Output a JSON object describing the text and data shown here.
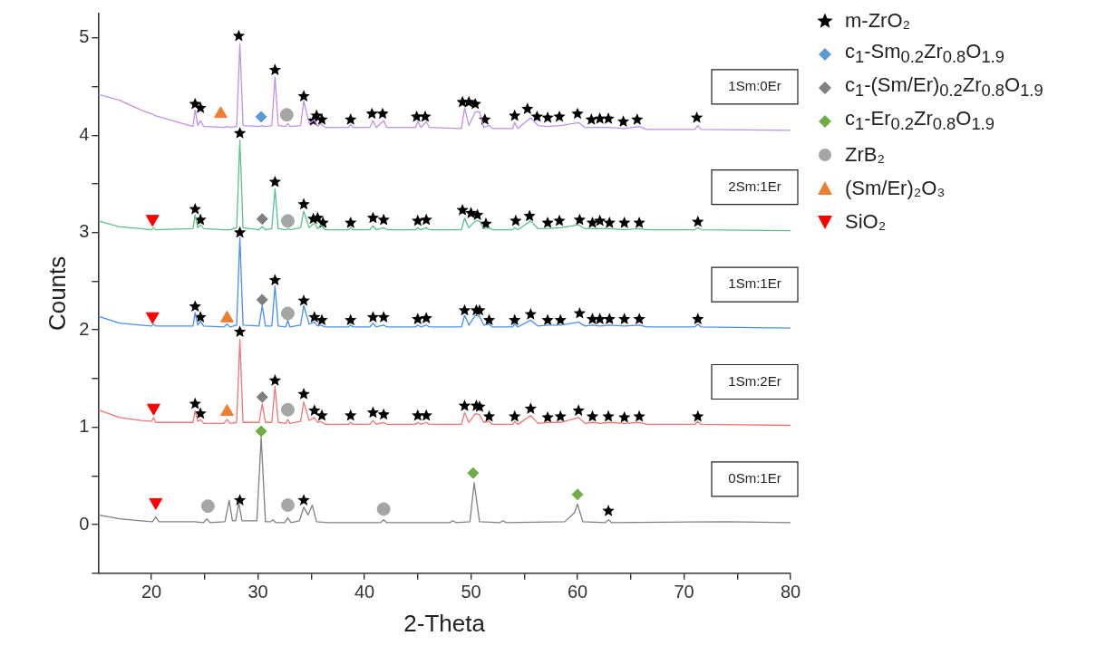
{
  "chart_data": {
    "type": "line",
    "xlabel": "2-Theta",
    "ylabel": "Counts",
    "xlim": [
      15,
      80
    ],
    "xticks": [
      20,
      {
        "value": 25,
        "label": null
      },
      30,
      {
        "value": 35,
        "label": null
      },
      40,
      {
        "value": 45,
        "label": null
      },
      50,
      {
        "value": 55,
        "label": null
      },
      60,
      {
        "value": 65,
        "label": null
      },
      70,
      {
        "value": 75,
        "label": null
      },
      80
    ],
    "ylim": [
      -0.5,
      5.25
    ],
    "yticks": [
      {
        "value": -0.5,
        "label": null
      },
      0,
      {
        "value": 0.5,
        "label": null
      },
      1,
      {
        "value": 1.5,
        "label": null
      },
      2,
      {
        "value": 2.5,
        "label": null
      },
      3,
      {
        "value": 3.5,
        "label": null
      },
      4,
      {
        "value": 4.5,
        "label": null
      },
      5
    ],
    "legend": "right",
    "series": [
      {
        "name": "0Sm:1Er",
        "color": "#808080",
        "marker": "none",
        "x": [
          15,
          17,
          19,
          20.1,
          20.4,
          20.7,
          24,
          24.9,
          25.2,
          25.5,
          26.9,
          27.3,
          27.6,
          27.9,
          28.2,
          28.5,
          29.9,
          30.3,
          30.7,
          31.2,
          31.4,
          31.7,
          32.5,
          32.8,
          33.1,
          33.9,
          34.3,
          34.7,
          35.1,
          35.5,
          36.5,
          41.5,
          41.8,
          42.1,
          48,
          48.3,
          48.6,
          49.9,
          50.3,
          50.8,
          52.7,
          53,
          53.3,
          58.8,
          59.7,
          60,
          60.5,
          62.6,
          62.9,
          63.2,
          74,
          80
        ],
        "values": [
          0.1,
          0.06,
          0.04,
          0.03,
          0.08,
          0.03,
          0.03,
          0.02,
          0.06,
          0.02,
          0.03,
          0.25,
          0.04,
          0.04,
          0.22,
          0.04,
          0.04,
          0.9,
          0.03,
          0.03,
          0.05,
          0.02,
          0.02,
          0.07,
          0.02,
          0.04,
          0.18,
          0.1,
          0.2,
          0.03,
          0.02,
          0.02,
          0.05,
          0.02,
          0.02,
          0.04,
          0.02,
          0.03,
          0.43,
          0.03,
          0.02,
          0.04,
          0.02,
          0.03,
          0.12,
          0.21,
          0.03,
          0.02,
          0.05,
          0.02,
          0.03,
          0.02
        ]
      },
      {
        "name": "1Sm:2Er",
        "color": "#f07575",
        "marker": "none",
        "x": [
          15,
          17,
          19,
          20,
          20.2,
          20.4,
          23.9,
          24.1,
          24.35,
          24.6,
          24.9,
          26.8,
          27.1,
          27.4,
          28,
          28.3,
          28.6,
          30.1,
          30.4,
          30.7,
          31.3,
          31.6,
          31.9,
          32.6,
          32.8,
          33,
          34,
          34.3,
          34.8,
          35.3,
          35.6,
          35.9,
          36.3,
          38.5,
          38.7,
          38.9,
          40.5,
          40.8,
          41.1,
          41.8,
          42.1,
          44.8,
          45,
          45.3,
          45.8,
          46.1,
          49.1,
          49.4,
          49.8,
          50.4,
          50.8,
          51.2,
          51.7,
          52,
          53.9,
          54.1,
          54.4,
          55.6,
          56.3,
          57.2,
          58.4,
          60.1,
          60.7,
          61.4,
          62.1,
          63,
          64.4,
          65.8,
          66.5,
          71,
          71.3,
          71.6,
          80
        ],
        "values": [
          1.18,
          1.1,
          1.07,
          1.06,
          1.1,
          1.05,
          1.05,
          1.17,
          1.06,
          1.08,
          1.04,
          1.04,
          1.08,
          1.04,
          1.05,
          1.9,
          1.05,
          1.05,
          1.24,
          1.05,
          1.05,
          1.42,
          1.05,
          1.04,
          1.08,
          1.04,
          1.06,
          1.26,
          1.07,
          1.1,
          1.05,
          1.06,
          1.03,
          1.03,
          1.05,
          1.03,
          1.03,
          1.07,
          1.03,
          1.05,
          1.03,
          1.03,
          1.05,
          1.03,
          1.05,
          1.03,
          1.03,
          1.15,
          1.05,
          1.14,
          1.13,
          1.05,
          1.06,
          1.03,
          1.03,
          1.06,
          1.03,
          1.12,
          1.04,
          1.05,
          1.05,
          1.1,
          1.04,
          1.05,
          1.04,
          1.05,
          1.04,
          1.05,
          1.03,
          1.03,
          1.06,
          1.03,
          1.02
        ]
      },
      {
        "name": "1Sm:1Er",
        "color": "#4a8ef0",
        "marker": "none",
        "x": [
          15,
          17,
          19,
          20,
          20.2,
          20.4,
          23.9,
          24.1,
          24.35,
          24.6,
          24.9,
          26.8,
          27.1,
          27.4,
          28,
          28.3,
          28.6,
          30.1,
          30.4,
          30.7,
          31.3,
          31.6,
          31.9,
          32.6,
          32.8,
          33,
          34,
          34.3,
          34.8,
          35.3,
          35.6,
          35.9,
          36.3,
          38.5,
          38.7,
          38.9,
          40.5,
          40.8,
          41.1,
          41.8,
          42.1,
          44.8,
          45,
          45.3,
          45.8,
          46.1,
          49.1,
          49.4,
          49.8,
          50.4,
          50.8,
          51.2,
          51.7,
          52,
          53.9,
          54.1,
          54.4,
          55.6,
          56.3,
          57.2,
          58.4,
          60.1,
          60.7,
          61.4,
          62.1,
          63,
          64.4,
          65.8,
          66.5,
          71,
          71.3,
          71.6,
          80
        ],
        "values": [
          2.14,
          2.07,
          2.05,
          2.04,
          2.06,
          2.04,
          2.04,
          2.18,
          2.05,
          2.09,
          2.04,
          2.03,
          2.06,
          2.03,
          2.05,
          2.95,
          2.05,
          2.04,
          2.25,
          2.04,
          2.04,
          2.45,
          2.04,
          2.03,
          2.1,
          2.03,
          2.05,
          2.25,
          2.06,
          2.08,
          2.04,
          2.05,
          2.03,
          2.03,
          2.05,
          2.03,
          2.03,
          2.07,
          2.03,
          2.05,
          2.03,
          2.03,
          2.05,
          2.03,
          2.05,
          2.03,
          2.03,
          2.15,
          2.05,
          2.15,
          2.14,
          2.05,
          2.06,
          2.03,
          2.03,
          2.06,
          2.03,
          2.1,
          2.04,
          2.05,
          2.05,
          2.08,
          2.04,
          2.05,
          2.04,
          2.05,
          2.04,
          2.05,
          2.03,
          2.03,
          2.06,
          2.03,
          2.02
        ]
      },
      {
        "name": "2Sm:1Er",
        "color": "#5cc08a",
        "marker": "none",
        "x": [
          15,
          17,
          19,
          20,
          20.2,
          20.4,
          23.9,
          24.1,
          24.35,
          24.6,
          24.9,
          26.8,
          27.1,
          27.4,
          28,
          28.3,
          28.6,
          30.1,
          30.4,
          30.7,
          31.3,
          31.6,
          31.9,
          32.6,
          32.8,
          33,
          34,
          34.3,
          34.8,
          35.3,
          35.6,
          35.9,
          36.3,
          38.5,
          38.7,
          38.9,
          40.5,
          40.8,
          41.1,
          41.8,
          42.1,
          44.8,
          45,
          45.3,
          45.8,
          46.1,
          49.1,
          49.4,
          49.8,
          50.4,
          50.8,
          51.2,
          51.7,
          52,
          53.9,
          54.1,
          54.4,
          55.6,
          56.3,
          57.2,
          58.4,
          60.1,
          60.7,
          61.4,
          62.1,
          63,
          64.4,
          65.8,
          66.5,
          71,
          71.3,
          71.6,
          80
        ],
        "values": [
          3.12,
          3.06,
          3.04,
          3.03,
          3.05,
          3.03,
          3.04,
          3.18,
          3.05,
          3.08,
          3.04,
          3.03,
          3.03,
          3.03,
          3.05,
          3.95,
          3.05,
          3.03,
          3.06,
          3.03,
          3.04,
          3.45,
          3.04,
          3.03,
          3.04,
          3.03,
          3.05,
          3.22,
          3.05,
          3.1,
          3.04,
          3.08,
          3.03,
          3.03,
          3.05,
          3.03,
          3.03,
          3.07,
          3.03,
          3.05,
          3.03,
          3.03,
          3.05,
          3.03,
          3.05,
          3.03,
          3.03,
          3.15,
          3.05,
          3.12,
          3.12,
          3.04,
          3.05,
          3.03,
          3.03,
          3.05,
          3.03,
          3.12,
          3.04,
          3.04,
          3.05,
          3.08,
          3.04,
          3.04,
          3.04,
          3.04,
          3.03,
          3.04,
          3.03,
          3.03,
          3.05,
          3.03,
          3.02
        ]
      },
      {
        "name": "1Sm:0Er",
        "color": "#c090e8",
        "marker": "none",
        "x": [
          15,
          17,
          19,
          20,
          20.2,
          20.4,
          23.9,
          24.1,
          24.35,
          24.6,
          24.9,
          26.8,
          27.1,
          27.4,
          28,
          28.3,
          28.6,
          30.1,
          30.4,
          30.7,
          31.3,
          31.6,
          31.9,
          32.6,
          32.8,
          33,
          34,
          34.3,
          34.8,
          35.3,
          35.6,
          35.9,
          36.3,
          38.5,
          38.7,
          38.9,
          40.5,
          40.8,
          41.1,
          41.8,
          42.1,
          44.8,
          45,
          45.3,
          45.8,
          46.1,
          49.1,
          49.4,
          49.8,
          50.4,
          50.8,
          51.2,
          51.7,
          52,
          53.9,
          54.1,
          54.4,
          55.6,
          56.3,
          57.2,
          58.4,
          60.1,
          60.7,
          61.4,
          62.1,
          63,
          64.4,
          65.8,
          66.5,
          71,
          71.3,
          71.6,
          80
        ],
        "values": [
          4.42,
          4.36,
          4.26,
          4.22,
          4.21,
          4.2,
          4.09,
          4.26,
          4.1,
          4.15,
          4.09,
          4.08,
          4.09,
          4.08,
          4.09,
          4.94,
          4.1,
          4.09,
          4.1,
          4.09,
          4.1,
          4.6,
          4.1,
          4.09,
          4.12,
          4.09,
          4.1,
          4.35,
          4.12,
          4.16,
          4.09,
          4.12,
          4.08,
          4.08,
          4.11,
          4.08,
          4.08,
          4.15,
          4.08,
          4.15,
          4.08,
          4.08,
          4.14,
          4.08,
          4.14,
          4.08,
          4.07,
          4.28,
          4.1,
          4.24,
          4.24,
          4.08,
          4.1,
          4.07,
          4.07,
          4.13,
          4.07,
          4.18,
          4.1,
          4.09,
          4.1,
          4.13,
          4.08,
          4.08,
          4.08,
          4.08,
          4.07,
          4.09,
          4.06,
          4.06,
          4.1,
          4.06,
          4.05
        ]
      },
      {
        "type": "scatter",
        "name": "m-ZrO₂",
        "color": "#000000",
        "marker": "star",
        "x": [
          28.3,
          34.3,
          62.9,
          24.1,
          24.6,
          28.3,
          31.6,
          34.3,
          35.3,
          36,
          38.7,
          40.8,
          41.8,
          45,
          45.8,
          49.4,
          50.5,
          50.8,
          51.7,
          54.1,
          55.6,
          57.2,
          58.4,
          60.1,
          61.4,
          62.9,
          64.4,
          65.8,
          71.3,
          24.1,
          24.6,
          28.3,
          31.6,
          34.3,
          35.3,
          36,
          38.7,
          40.8,
          41.8,
          45,
          45.8,
          49.4,
          50.5,
          50.8,
          51.7,
          54.1,
          55.6,
          57.2,
          58.4,
          60.2,
          61.4,
          62.1,
          63,
          64.4,
          65.8,
          71.3,
          24.1,
          24.6,
          28.3,
          31.6,
          34.3,
          35.2,
          35.6,
          36.1,
          38.7,
          40.8,
          41.8,
          45,
          45.8,
          49.2,
          50,
          50.6,
          51.4,
          54.2,
          55.5,
          57.2,
          58.3,
          60.2,
          61.4,
          62.1,
          63,
          64.4,
          65.8,
          71.3,
          24.1,
          24.6,
          28.2,
          31.6,
          34.3,
          35.2,
          35.5,
          36,
          38.7,
          40.7,
          41.7,
          44.9,
          45.7,
          49.2,
          49.8,
          50.4,
          51.3,
          54.1,
          55.3,
          56.2,
          57.2,
          58.3,
          60,
          61.3,
          62.1,
          62.9,
          64.3,
          65.6,
          71.2
        ],
        "values": [
          0.25,
          0.25,
          0.14,
          1.24,
          1.14,
          1.98,
          1.48,
          1.34,
          1.17,
          1.12,
          1.12,
          1.15,
          1.13,
          1.12,
          1.12,
          1.22,
          1.22,
          1.21,
          1.11,
          1.11,
          1.19,
          1.1,
          1.11,
          1.17,
          1.11,
          1.11,
          1.1,
          1.11,
          1.11,
          2.24,
          2.13,
          3.0,
          2.51,
          2.3,
          2.13,
          2.1,
          2.1,
          2.13,
          2.13,
          2.11,
          2.12,
          2.2,
          2.2,
          2.2,
          2.1,
          2.1,
          2.16,
          2.1,
          2.1,
          2.17,
          2.11,
          2.11,
          2.11,
          2.11,
          2.11,
          2.11,
          3.24,
          3.13,
          4.02,
          3.52,
          3.29,
          3.14,
          3.15,
          3.1,
          3.1,
          3.15,
          3.13,
          3.12,
          3.13,
          3.23,
          3.2,
          3.18,
          3.09,
          3.12,
          3.17,
          3.1,
          3.12,
          3.13,
          3.1,
          3.12,
          3.1,
          3.1,
          3.1,
          3.11,
          4.32,
          4.28,
          5.02,
          4.67,
          4.4,
          4.15,
          4.2,
          4.16,
          4.16,
          4.22,
          4.22,
          4.19,
          4.19,
          4.34,
          4.34,
          4.32,
          4.16,
          4.2,
          4.27,
          4.19,
          4.18,
          4.19,
          4.22,
          4.16,
          4.17,
          4.17,
          4.14,
          4.16,
          4.18
        ]
      },
      {
        "type": "scatter",
        "name": "c$_{1}$-Sm$_{0.2}$Zr$_{0.8}$O$_{1.9}$",
        "color": "#5b9bd5",
        "marker": "diamond",
        "x": [
          30.3
        ],
        "values": [
          4.19
        ]
      },
      {
        "type": "scatter",
        "name": "c$_{1}$-(Sm/Er)$_{0.2}$Zr$_{0.8}$O$_{1.9}$",
        "color": "#7f7f7f",
        "marker": "diamond",
        "x": [
          30.4,
          30.4,
          30.4
        ],
        "values": [
          3.14,
          2.31,
          1.31
        ]
      },
      {
        "type": "scatter",
        "name": "c$_{1}$-Er$_{0.2}$Zr$_{0.8}$O$_{1.9}$",
        "color": "#70ad47",
        "marker": "diamond",
        "x": [
          30.3,
          50.2,
          60
        ],
        "values": [
          0.96,
          0.53,
          0.31
        ]
      },
      {
        "type": "scatter",
        "name": "ZrB₂",
        "color": "#a6a6a6",
        "marker": "circle",
        "x": [
          32.7,
          32.8,
          32.8,
          32.8,
          25.3,
          32.8,
          41.8
        ],
        "values": [
          4.21,
          3.12,
          2.17,
          1.18,
          0.19,
          0.2,
          0.16
        ]
      },
      {
        "type": "scatter",
        "name": "(Sm/Er)₂O₃",
        "color": "#ed7d31",
        "marker": "triangle",
        "x": [
          26.5,
          27.1,
          27.1
        ],
        "values": [
          4.22,
          2.12,
          1.16
        ]
      },
      {
        "type": "scatter",
        "name": "SiO₂",
        "color": "#ff0000",
        "marker": "triangle-down",
        "x": [
          20.1,
          20.1,
          20.2,
          20.4
        ],
        "values": [
          3.14,
          2.14,
          1.2,
          0.23
        ]
      }
    ]
  }
}
